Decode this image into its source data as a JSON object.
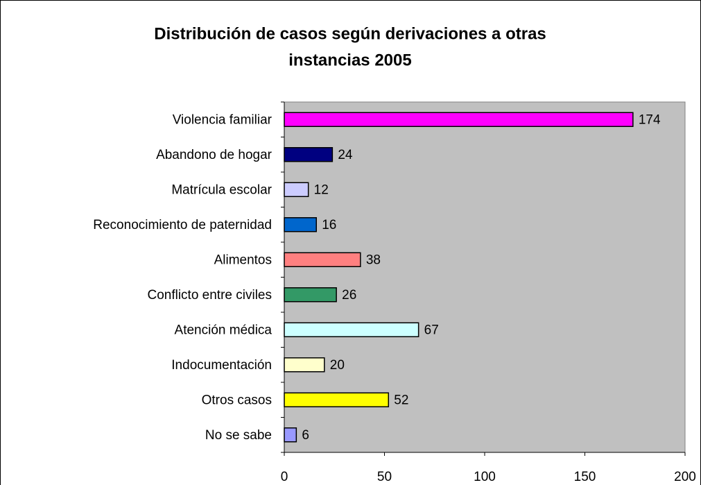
{
  "chart_data": {
    "type": "hbar",
    "title": [
      "Distribución de casos según derivaciones a otras",
      "instancias 2005"
    ],
    "categories": [
      "Violencia familiar",
      "Abandono de hogar",
      "Matrícula escolar",
      "Reconocimiento de paternidad",
      "Alimentos",
      "Conflicto entre civiles",
      "Atención médica ",
      "Indocumentación",
      "Otros casos",
      "No se sabe"
    ],
    "values": [
      174,
      24,
      12,
      16,
      38,
      26,
      67,
      20,
      52,
      6
    ],
    "colors": [
      "#ff00ff",
      "#000080",
      "#ccccff",
      "#0066cc",
      "#ff8080",
      "#339966",
      "#ccffff",
      "#ffffcc",
      "#ffff00",
      "#9999ff"
    ],
    "xlim": [
      0,
      200
    ],
    "xticks": [
      0,
      50,
      100,
      150,
      200
    ],
    "plot_background": "#c0c0c0"
  }
}
